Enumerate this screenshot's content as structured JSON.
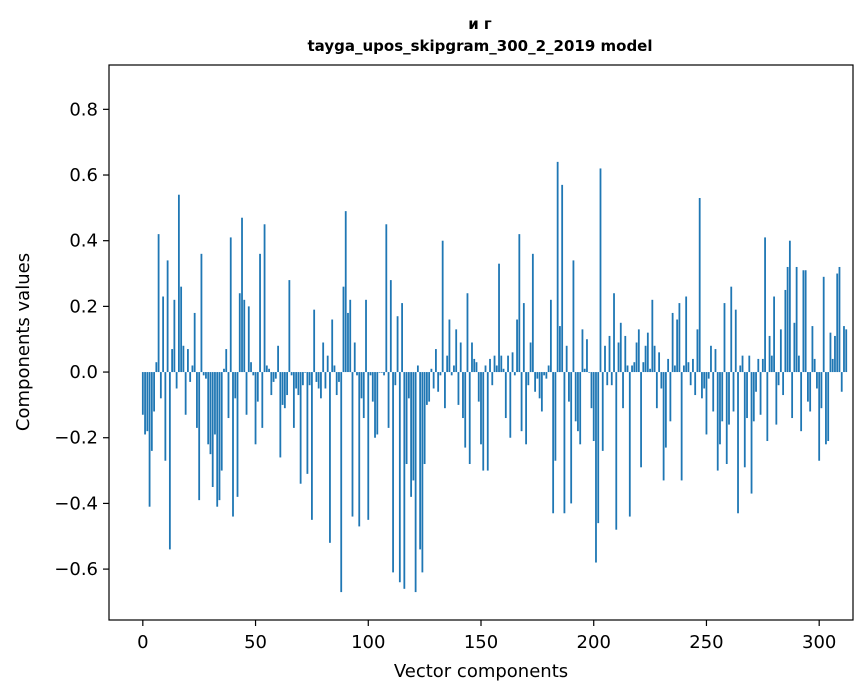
{
  "chart_data": {
    "type": "bar",
    "title_line1": "и г",
    "title_line2": "tayga_upos_skipgram_300_2_2019 model",
    "xlabel": "Vector components",
    "ylabel": "Components values",
    "xlim": [
      -15,
      315
    ],
    "ylim": [
      -0.755,
      0.935
    ],
    "xticks": [
      0,
      50,
      100,
      150,
      200,
      250,
      300
    ],
    "xtick_labels": [
      "0",
      "50",
      "100",
      "150",
      "200",
      "250",
      "300"
    ],
    "yticks": [
      -0.6,
      -0.4,
      -0.2,
      0.0,
      0.2,
      0.4,
      0.6,
      0.8
    ],
    "ytick_labels": [
      "−0.6",
      "−0.4",
      "−0.2",
      "0.0",
      "0.2",
      "0.4",
      "0.6",
      "0.8"
    ],
    "bar_color": "#1f77b4",
    "values": [
      -0.13,
      -0.19,
      -0.18,
      -0.41,
      -0.24,
      -0.12,
      0.03,
      0.42,
      -0.08,
      0.23,
      -0.27,
      0.34,
      -0.54,
      0.07,
      0.22,
      -0.05,
      0.54,
      0.26,
      0.08,
      -0.13,
      0.07,
      -0.03,
      0.02,
      0.18,
      -0.17,
      -0.39,
      0.36,
      -0.01,
      -0.02,
      -0.22,
      -0.25,
      -0.35,
      -0.19,
      -0.41,
      -0.39,
      -0.3,
      0.01,
      0.07,
      -0.14,
      0.41,
      -0.44,
      -0.08,
      -0.38,
      0.24,
      0.47,
      0.22,
      -0.13,
      0.2,
      0.03,
      -0.01,
      -0.22,
      -0.09,
      0.36,
      -0.17,
      0.45,
      0.02,
      0.01,
      -0.07,
      -0.03,
      -0.02,
      0.08,
      -0.26,
      -0.1,
      -0.11,
      -0.07,
      0.28,
      -0.01,
      -0.17,
      -0.05,
      -0.07,
      -0.34,
      -0.04,
      0.0,
      -0.31,
      -0.04,
      -0.45,
      0.19,
      -0.03,
      -0.05,
      -0.08,
      0.09,
      -0.05,
      0.05,
      -0.52,
      0.16,
      0.02,
      -0.07,
      -0.03,
      -0.67,
      0.26,
      0.49,
      0.18,
      0.22,
      -0.44,
      0.09,
      -0.01,
      -0.47,
      -0.08,
      -0.14,
      0.22,
      -0.45,
      -0.01,
      -0.09,
      -0.2,
      -0.19,
      0.0,
      0.0,
      -0.01,
      0.45,
      -0.17,
      0.28,
      -0.61,
      -0.04,
      0.17,
      -0.64,
      0.21,
      -0.66,
      -0.28,
      -0.08,
      -0.38,
      -0.33,
      -0.67,
      0.02,
      -0.54,
      -0.61,
      -0.28,
      -0.1,
      -0.09,
      0.01,
      -0.05,
      0.07,
      -0.06,
      -0.01,
      0.4,
      -0.11,
      0.05,
      0.16,
      -0.01,
      0.02,
      0.13,
      -0.1,
      0.09,
      -0.14,
      -0.23,
      0.24,
      -0.28,
      0.09,
      0.04,
      0.03,
      -0.09,
      -0.22,
      -0.3,
      0.02,
      -0.3,
      0.04,
      -0.04,
      0.05,
      0.02,
      0.33,
      0.05,
      0.01,
      -0.14,
      0.05,
      -0.2,
      0.06,
      -0.01,
      0.16,
      0.42,
      -0.18,
      0.21,
      -0.22,
      -0.04,
      0.09,
      0.36,
      -0.06,
      -0.02,
      -0.08,
      -0.12,
      -0.01,
      -0.02,
      0.02,
      0.22,
      -0.43,
      -0.27,
      0.64,
      0.14,
      0.57,
      -0.43,
      0.08,
      -0.09,
      -0.4,
      0.34,
      -0.15,
      -0.18,
      -0.22,
      0.13,
      0.01,
      0.1,
      0.0,
      -0.11,
      -0.21,
      -0.58,
      -0.46,
      0.62,
      -0.24,
      0.08,
      -0.04,
      0.11,
      -0.04,
      0.24,
      -0.48,
      0.09,
      0.15,
      -0.11,
      0.11,
      0.02,
      -0.44,
      0.02,
      0.03,
      0.09,
      0.13,
      -0.29,
      0.03,
      0.08,
      0.12,
      0.01,
      0.22,
      0.08,
      -0.11,
      0.06,
      -0.05,
      -0.33,
      -0.23,
      0.04,
      -0.15,
      0.18,
      0.02,
      0.16,
      0.21,
      -0.33,
      0.02,
      0.23,
      0.03,
      -0.04,
      0.04,
      -0.07,
      0.13,
      0.53,
      -0.08,
      -0.05,
      -0.19,
      -0.02,
      0.08,
      -0.12,
      0.07,
      -0.3,
      -0.22,
      -0.15,
      0.21,
      -0.28,
      -0.16,
      0.26,
      -0.12,
      0.19,
      -0.43,
      0.02,
      0.05,
      -0.29,
      -0.14,
      0.05,
      -0.37,
      -0.15,
      -0.06,
      0.04,
      -0.13,
      0.04,
      0.41,
      -0.21,
      0.11,
      0.05,
      0.23,
      -0.16,
      -0.04,
      0.13,
      -0.07,
      0.25,
      0.32,
      0.4,
      -0.14,
      0.15,
      0.32,
      0.05,
      -0.18,
      0.31,
      0.31,
      -0.09,
      -0.12,
      0.14,
      0.04,
      -0.05,
      -0.27,
      -0.11,
      0.29,
      -0.22,
      -0.21,
      0.12,
      0.04,
      0.11,
      0.3,
      0.32,
      -0.06,
      0.14,
      0.13
    ]
  }
}
